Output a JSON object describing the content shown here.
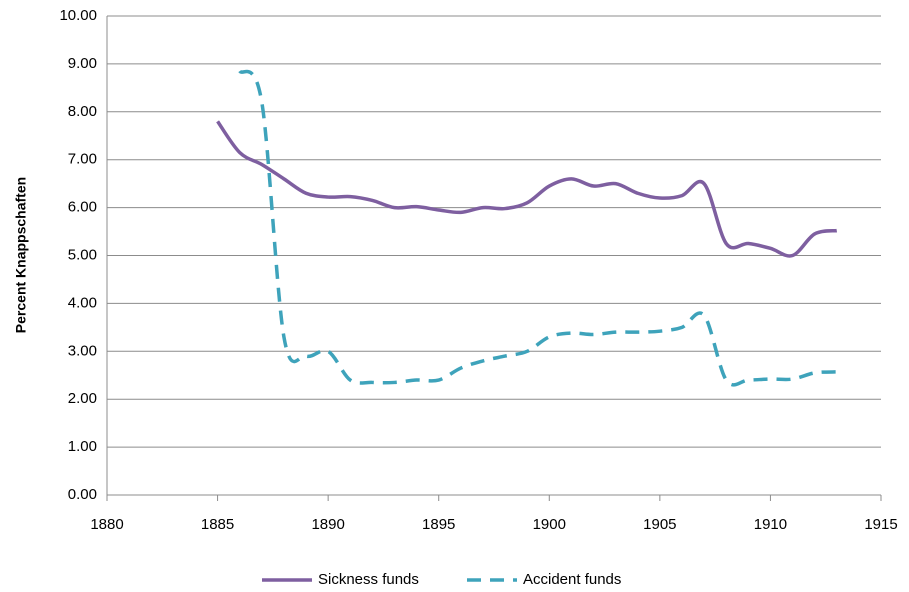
{
  "chart_data": {
    "type": "line",
    "y_label": "Percent  Knappschaften",
    "x": [
      1885,
      1886,
      1887,
      1888,
      1889,
      1890,
      1891,
      1892,
      1893,
      1894,
      1895,
      1896,
      1897,
      1898,
      1899,
      1900,
      1901,
      1902,
      1903,
      1904,
      1905,
      1906,
      1907,
      1908,
      1909,
      1910,
      1911,
      1912,
      1913
    ],
    "series": [
      {
        "name": "Sickness funds",
        "color": "#7e5fa0",
        "dash": "solid",
        "values": [
          7.8,
          7.15,
          6.9,
          6.6,
          6.3,
          6.22,
          6.23,
          6.15,
          6.0,
          6.02,
          5.95,
          5.9,
          6.0,
          5.98,
          6.1,
          6.45,
          6.6,
          6.45,
          6.5,
          6.3,
          6.2,
          6.25,
          6.5,
          5.25,
          5.25,
          5.15,
          5.0,
          5.45,
          5.52
        ]
      },
      {
        "name": "Accident funds",
        "color": "#3ea3bb",
        "dash": "dashed",
        "values": [
          null,
          8.85,
          8.2,
          3.3,
          2.9,
          3.0,
          2.4,
          2.35,
          2.35,
          2.4,
          2.4,
          2.65,
          2.8,
          2.9,
          3.0,
          3.3,
          3.38,
          3.35,
          3.4,
          3.4,
          3.42,
          3.5,
          3.75,
          2.4,
          2.4,
          2.42,
          2.42,
          2.55,
          2.57
        ]
      }
    ],
    "xlim": [
      1880,
      1915
    ],
    "xticks": [
      1880,
      1885,
      1890,
      1895,
      1900,
      1905,
      1910,
      1915
    ],
    "ylim": [
      0,
      10
    ],
    "yticks": [
      {
        "value": 0,
        "label": "0.00"
      },
      {
        "value": 1,
        "label": "1.00"
      },
      {
        "value": 2,
        "label": "2.00"
      },
      {
        "value": 3,
        "label": "3.00"
      },
      {
        "value": 4,
        "label": "4.00"
      },
      {
        "value": 5,
        "label": "5.00"
      },
      {
        "value": 6,
        "label": "6.00"
      },
      {
        "value": 7,
        "label": "7.00"
      },
      {
        "value": 8,
        "label": "8.00"
      },
      {
        "value": 9,
        "label": "9.00"
      },
      {
        "value": 10,
        "label": "10.00"
      }
    ],
    "grid": true,
    "legend": "bottom"
  }
}
